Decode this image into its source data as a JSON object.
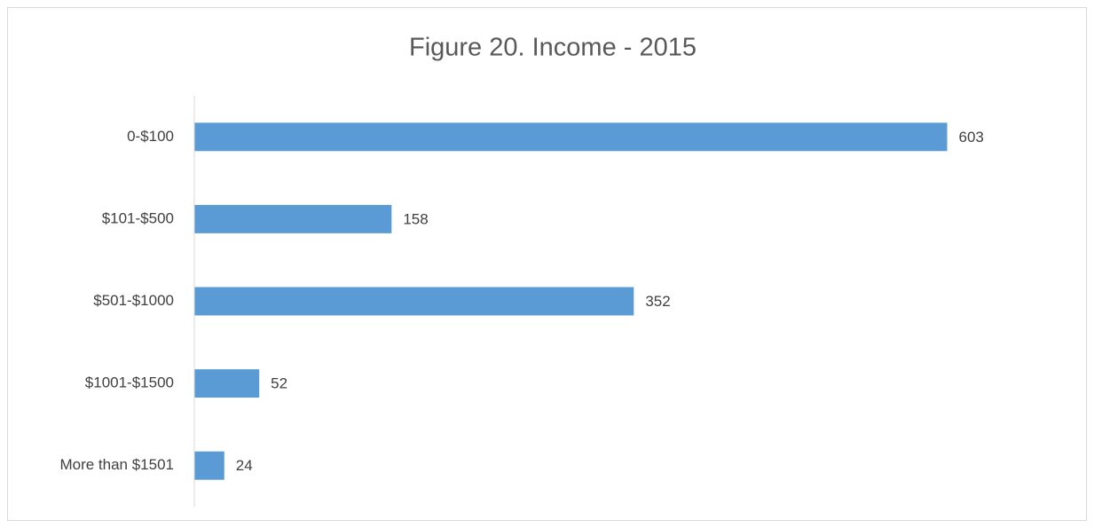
{
  "chart_data": {
    "type": "bar",
    "orientation": "horizontal",
    "title": "Figure 20. Income - 2015",
    "categories": [
      "0-$100",
      "$101-$500",
      "$501-$1000",
      "$1001-$1500",
      "More than $1501"
    ],
    "values": [
      603,
      158,
      352,
      52,
      24
    ],
    "color": "#5b9bd5",
    "xlim": [
      0,
      700
    ]
  }
}
